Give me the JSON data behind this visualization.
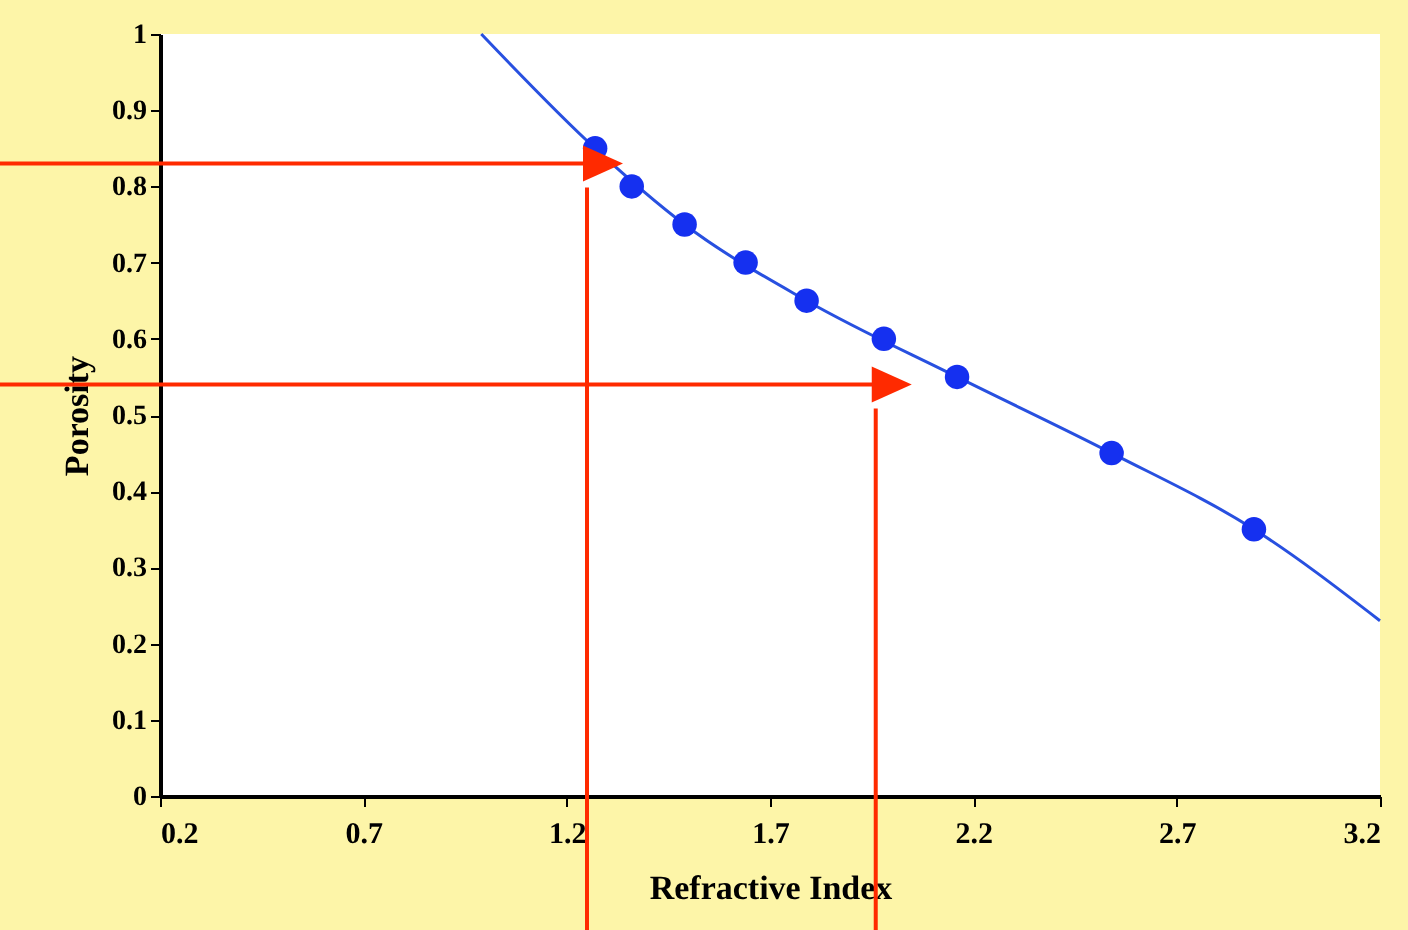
{
  "chart_data": {
    "type": "scatter",
    "xlabel": "Refractive Index",
    "ylabel": "Porosity",
    "xlim": [
      0.2,
      3.2
    ],
    "ylim": [
      0,
      1
    ],
    "xticks": [
      0.2,
      0.7,
      1.2,
      1.7,
      2.2,
      2.7,
      3.2
    ],
    "yticks": [
      0,
      0.1,
      0.2,
      0.3,
      0.4,
      0.5,
      0.6,
      0.7,
      0.8,
      0.9,
      1
    ],
    "grid": false,
    "ref_lines": [
      {
        "axis": "y",
        "value": 0.83,
        "color": "#ff2a00"
      },
      {
        "axis": "x",
        "value": 1.25,
        "color": "#ff2a00"
      },
      {
        "axis": "y",
        "value": 0.54,
        "color": "#ff2a00"
      },
      {
        "axis": "x",
        "value": 1.96,
        "color": "#ff2a00"
      }
    ],
    "series": [
      {
        "type": "line",
        "color": "#2850e0",
        "x": [
          0.99,
          1.27,
          1.49,
          1.79,
          2.16,
          2.54,
          2.89,
          3.2
        ],
        "values": [
          1,
          0.85,
          0.75,
          0.65,
          0.55,
          0.45,
          0.35,
          0.23
        ]
      },
      {
        "color": "#1530f0",
        "marker": "circle",
        "x": [
          1.27,
          1.36,
          1.49,
          1.64,
          1.79,
          1.98,
          2.16,
          2.54,
          2.89
        ],
        "values": [
          0.85,
          0.8,
          0.75,
          0.7,
          0.65,
          0.6,
          0.55,
          0.45,
          0.35
        ]
      }
    ]
  }
}
